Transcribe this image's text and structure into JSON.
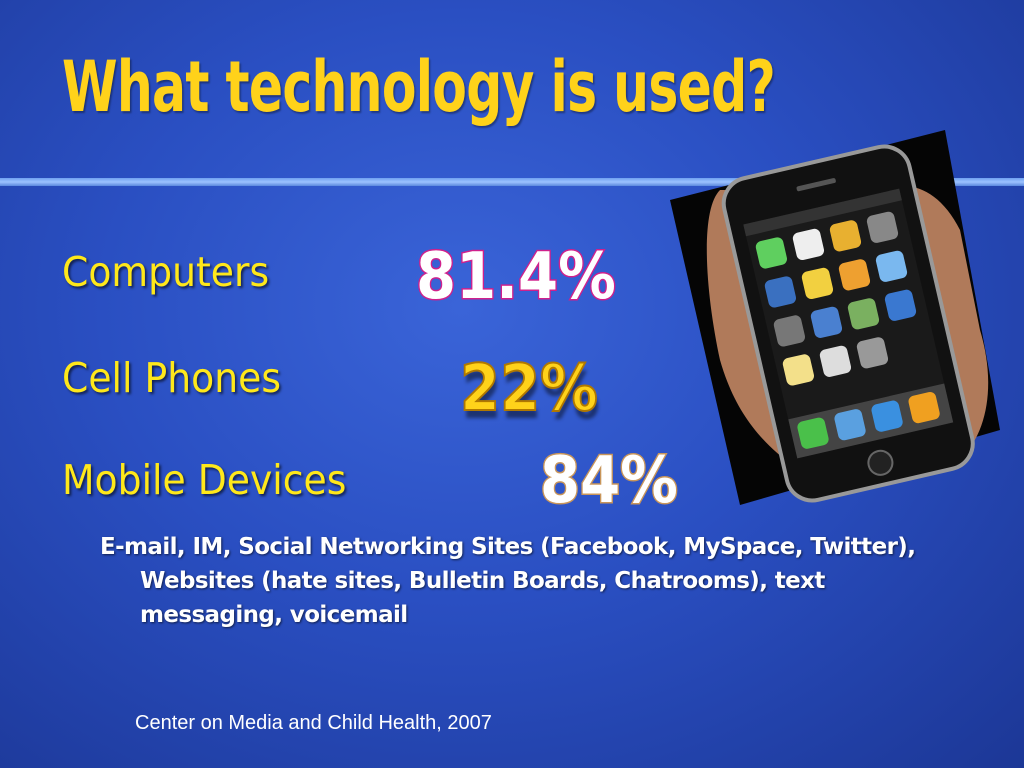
{
  "header": {
    "title": "What technology is used?"
  },
  "items": [
    {
      "label": "Computers",
      "stat": "81.4%"
    },
    {
      "label": "Cell Phones",
      "stat": "22%"
    },
    {
      "label": "Mobile Devices",
      "stat": "84%"
    }
  ],
  "bullet": "E-mail, IM, Social Networking Sites (Facebook, MySpace, Twitter), Websites (hate sites, Bulletin Boards, Chatrooms), text messaging, voicemail",
  "source": "Center on Media and Child Health, 2007"
}
